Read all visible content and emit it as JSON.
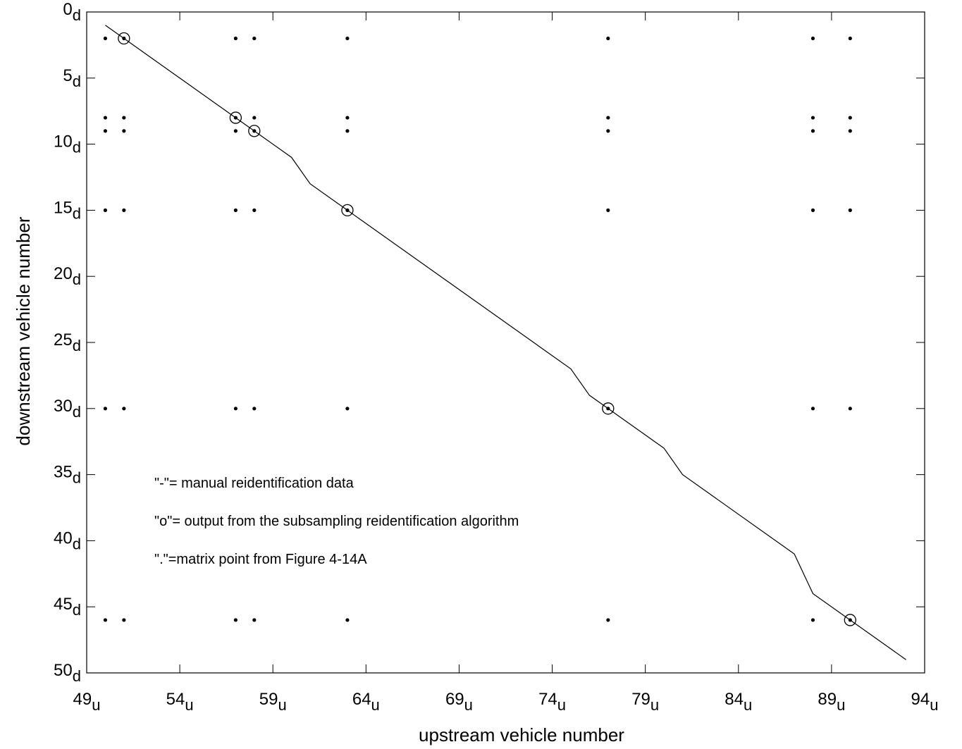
{
  "chart_data": {
    "type": "scatter",
    "xlabel": "upstream vehicle number",
    "ylabel": "downstream vehicle number",
    "xlim": [
      49,
      94
    ],
    "ylim": [
      50,
      0
    ],
    "xticks": [
      {
        "value": 49,
        "label": "49u"
      },
      {
        "value": 54,
        "label": "54u"
      },
      {
        "value": 59,
        "label": "59u"
      },
      {
        "value": 64,
        "label": "64u"
      },
      {
        "value": 69,
        "label": "69u"
      },
      {
        "value": 74,
        "label": "74u"
      },
      {
        "value": 79,
        "label": "79u"
      },
      {
        "value": 84,
        "label": "84u"
      },
      {
        "value": 89,
        "label": "89u"
      },
      {
        "value": 94,
        "label": "94u"
      }
    ],
    "yticks": [
      {
        "value": 0,
        "label": "0d"
      },
      {
        "value": 5,
        "label": "5d"
      },
      {
        "value": 10,
        "label": "10d"
      },
      {
        "value": 15,
        "label": "15d"
      },
      {
        "value": 20,
        "label": "20d"
      },
      {
        "value": 25,
        "label": "25d"
      },
      {
        "value": 30,
        "label": "30d"
      },
      {
        "value": 35,
        "label": "35d"
      },
      {
        "value": 40,
        "label": "40d"
      },
      {
        "value": 45,
        "label": "45d"
      },
      {
        "value": 50,
        "label": "50d"
      }
    ],
    "series": [
      {
        "type": "line",
        "color": "#000000",
        "x": [
          50,
          51,
          57,
          58,
          60,
          61,
          63,
          75,
          76,
          77,
          80,
          81,
          87,
          88,
          90,
          93
        ],
        "y": [
          1,
          2,
          8,
          9,
          11,
          13,
          15,
          27,
          29,
          30,
          33,
          35,
          41,
          44,
          46,
          49
        ]
      },
      {
        "type": "scatter",
        "marker": "dot",
        "color": "#000000",
        "x": [
          50,
          51,
          57,
          58,
          63,
          77,
          88,
          90,
          50,
          51,
          57,
          58,
          63,
          77,
          88,
          90,
          50,
          51,
          57,
          58,
          63,
          77,
          88,
          90,
          50,
          51,
          57,
          58,
          63,
          77,
          88,
          90,
          50,
          51,
          57,
          58,
          63,
          77,
          88,
          90,
          50,
          51,
          57,
          58,
          63,
          77,
          88,
          90
        ],
        "y": [
          2,
          2,
          2,
          2,
          2,
          2,
          2,
          2,
          8,
          8,
          8,
          8,
          8,
          8,
          8,
          8,
          9,
          9,
          9,
          9,
          9,
          9,
          9,
          9,
          15,
          15,
          15,
          15,
          15,
          15,
          15,
          15,
          30,
          30,
          30,
          30,
          30,
          30,
          30,
          30,
          46,
          46,
          46,
          46,
          46,
          46,
          46,
          46
        ]
      },
      {
        "type": "scatter",
        "marker": "circle",
        "color": "#000000",
        "x": [
          51,
          57,
          58,
          63,
          77,
          90
        ],
        "y": [
          2,
          8,
          9,
          15,
          30,
          46
        ]
      }
    ],
    "annotations": [
      "\"-\"= manual reidentification data",
      "\"o\"= output from the subsampling reidentification algorithm",
      "\".\"=matrix point from Figure 4-14A"
    ]
  }
}
